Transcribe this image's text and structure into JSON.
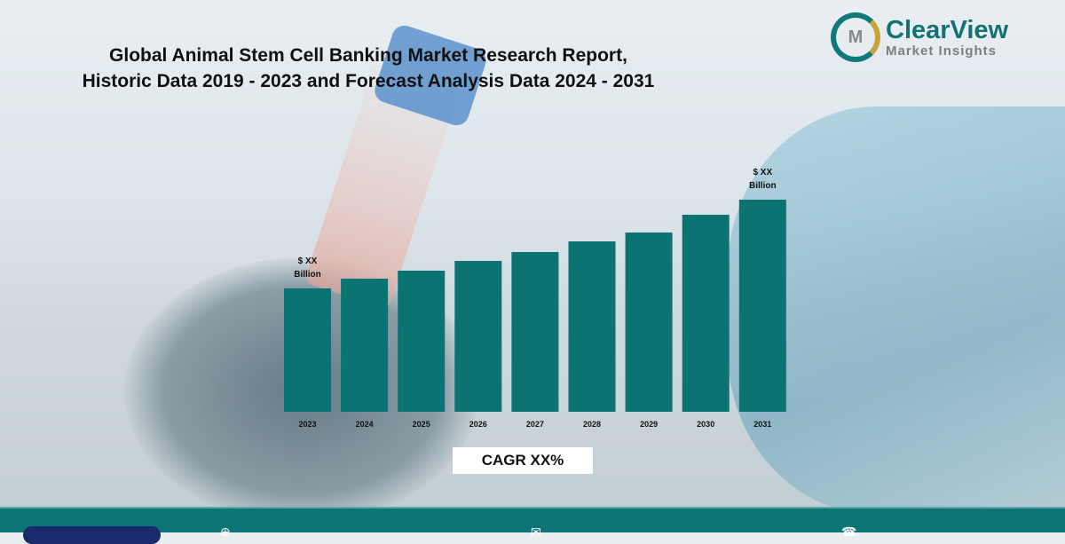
{
  "header": {
    "title_line1": "Global Animal Stem Cell Banking Market Research Report,",
    "title_line2": "Historic Data 2019 - 2023 and Forecast Analysis Data 2024 - 2031"
  },
  "logo": {
    "name": "ClearView",
    "tagline": "Market Insights",
    "mark": "M"
  },
  "cagr_label": "CAGR XX%",
  "footer": {
    "icons": [
      "globe-icon",
      "mail-icon",
      "phone-icon"
    ]
  },
  "colors": {
    "bar": "#0b7372",
    "footer": "#0e7475",
    "brand": "#137275"
  },
  "chart_data": {
    "type": "bar",
    "title": "Global Animal Stem Cell Banking Market",
    "categories": [
      "2023",
      "2024",
      "2025",
      "2026",
      "2027",
      "2028",
      "2029",
      "2030",
      "2031"
    ],
    "values": [
      139,
      150,
      159,
      170,
      180,
      192,
      202,
      222,
      239
    ],
    "value_units": "relative index (actual values undisclosed)",
    "annotations": [
      {
        "category": "2023",
        "line1": "$ XX",
        "line2": "Billion"
      },
      {
        "category": "2031",
        "line1": "$ XX",
        "line2": "Billion"
      }
    ],
    "xlabel": "",
    "ylabel": "",
    "ylim": [
      0,
      250
    ],
    "grid": false,
    "legend": "none"
  }
}
